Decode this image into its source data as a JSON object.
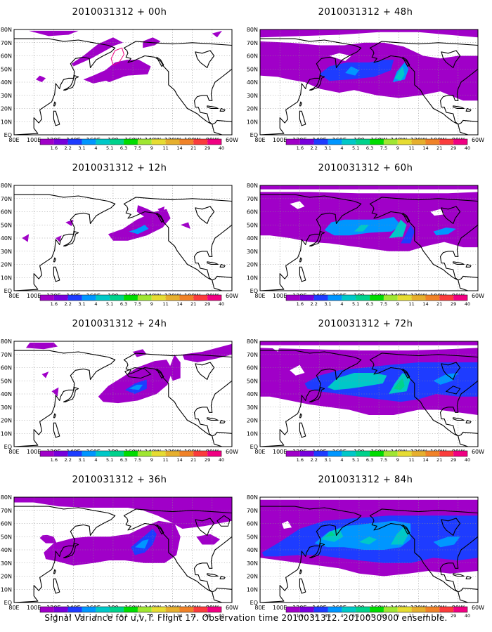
{
  "chart_data": {
    "type": "heatmap",
    "caption": "Signal Variance for u,v,T. Flight 17. Observation time 2010031312. 2010030900 ensemble.",
    "lat_labels": [
      "80N",
      "70N",
      "60N",
      "50N",
      "40N",
      "30N",
      "20N",
      "10N",
      "EQ"
    ],
    "lon_labels": [
      "80E",
      "100E",
      "120E",
      "140E",
      "160E",
      "180",
      "160W",
      "140W",
      "120W",
      "100W",
      "80W",
      "60W"
    ],
    "colorbar": {
      "labels": [
        "1.6",
        "2.2",
        "3.1",
        "4",
        "5.1",
        "6.3",
        "7.5",
        "9",
        "11",
        "14",
        "21",
        "29",
        "40"
      ],
      "colors": [
        "#a000c8",
        "#7800dc",
        "#1e3cff",
        "#0096ff",
        "#00c8c8",
        "#00d28c",
        "#00dc00",
        "#a0e632",
        "#e6dc32",
        "#e6af2d",
        "#f08228",
        "#fa3c3c",
        "#f00082"
      ]
    },
    "panels": [
      {
        "title": "2010031312 + 00h",
        "lead_hours": 0
      },
      {
        "title": "2010031312 + 48h",
        "lead_hours": 48
      },
      {
        "title": "2010031312 + 12h",
        "lead_hours": 12
      },
      {
        "title": "2010031312 + 60h",
        "lead_hours": 60
      },
      {
        "title": "2010031312 + 24h",
        "lead_hours": 24
      },
      {
        "title": "2010031312 + 72h",
        "lead_hours": 72
      },
      {
        "title": "2010031312 + 36h",
        "lead_hours": 36
      },
      {
        "title": "2010031312 + 84h",
        "lead_hours": 84
      }
    ]
  }
}
